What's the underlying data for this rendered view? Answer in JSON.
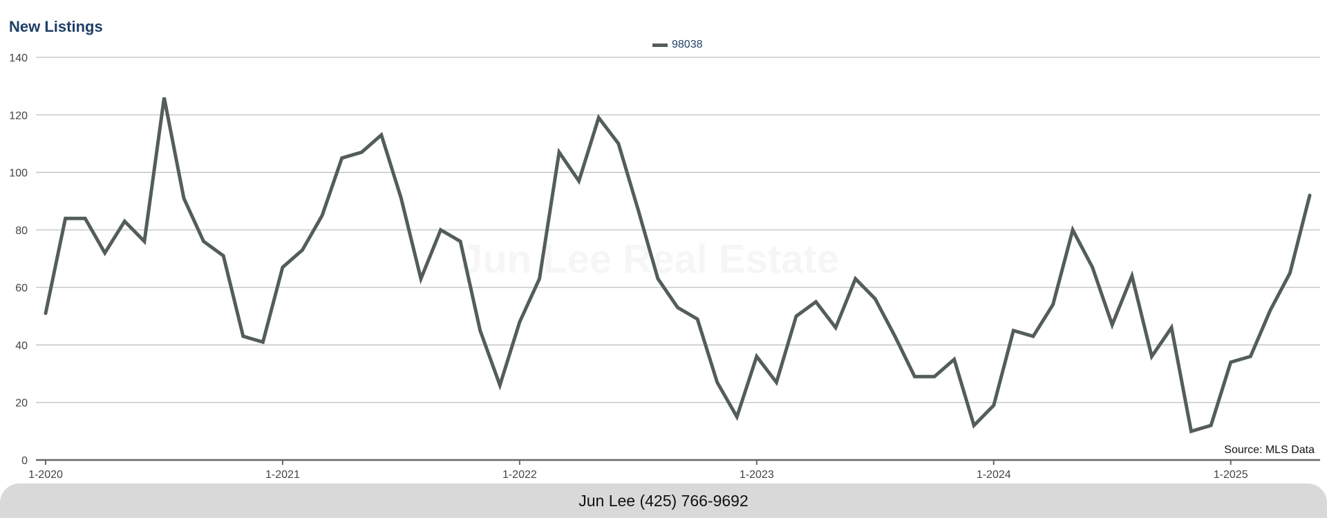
{
  "colors": {
    "line": "#535d5b",
    "grid": "#bfbfbf",
    "title": "#1f3f66",
    "axis_text": "#444444"
  },
  "chart_data": {
    "type": "line",
    "title": "New Listings",
    "xlabel": "",
    "ylabel": "",
    "ylim": [
      0,
      140
    ],
    "yticks": [
      "0",
      "20",
      "40",
      "60",
      "80",
      "100",
      "120",
      "140"
    ],
    "xtick_labels": [
      "1-2020",
      "1-2021",
      "1-2022",
      "1-2023",
      "1-2024",
      "1-2025"
    ],
    "grid": true,
    "legend_position": "top-center",
    "x": [
      "1-2020",
      "2-2020",
      "3-2020",
      "4-2020",
      "5-2020",
      "6-2020",
      "7-2020",
      "8-2020",
      "9-2020",
      "10-2020",
      "11-2020",
      "12-2020",
      "1-2021",
      "2-2021",
      "3-2021",
      "4-2021",
      "5-2021",
      "6-2021",
      "7-2021",
      "8-2021",
      "9-2021",
      "10-2021",
      "11-2021",
      "12-2021",
      "1-2022",
      "2-2022",
      "3-2022",
      "4-2022",
      "5-2022",
      "6-2022",
      "7-2022",
      "8-2022",
      "9-2022",
      "10-2022",
      "11-2022",
      "12-2022",
      "1-2023",
      "2-2023",
      "3-2023",
      "4-2023",
      "5-2023",
      "6-2023",
      "7-2023",
      "8-2023",
      "9-2023",
      "10-2023",
      "11-2023",
      "12-2023",
      "1-2024",
      "2-2024",
      "3-2024",
      "4-2024",
      "5-2024",
      "6-2024",
      "7-2024",
      "8-2024",
      "9-2024",
      "10-2024",
      "11-2024",
      "12-2024",
      "1-2025",
      "2-2025",
      "3-2025",
      "4-2025",
      "5-2025"
    ],
    "series": [
      {
        "name": "98038",
        "values": [
          51,
          84,
          84,
          72,
          83,
          76,
          126,
          91,
          76,
          71,
          43,
          41,
          67,
          73,
          85,
          105,
          107,
          113,
          91,
          63,
          80,
          76,
          45,
          26,
          48,
          63,
          107,
          97,
          119,
          110,
          87,
          63,
          53,
          49,
          27,
          15,
          36,
          27,
          50,
          55,
          46,
          63,
          56,
          43,
          29,
          29,
          35,
          12,
          19,
          45,
          43,
          54,
          80,
          67,
          47,
          64,
          36,
          46,
          10,
          12,
          34,
          36,
          52,
          65,
          92
        ]
      }
    ]
  },
  "source_note": "Source: MLS Data",
  "watermark": "Jun Lee Real Estate",
  "footer": {
    "contact": "Jun Lee (425) 766-9692"
  }
}
